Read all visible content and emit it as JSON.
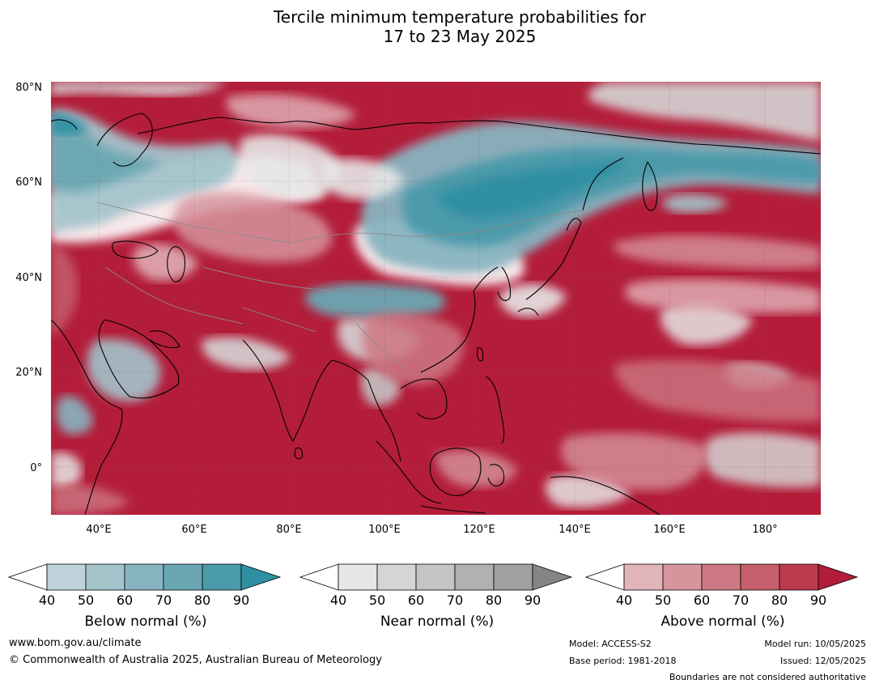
{
  "title_line1": "Tercile minimum temperature probabilities for",
  "title_line2": "17 to 23 May 2025",
  "map": {
    "lat_labels": [
      "80°N",
      "60°N",
      "40°N",
      "20°N",
      "0°"
    ],
    "lon_labels": [
      "40°E",
      "60°E",
      "80°E",
      "100°E",
      "120°E",
      "140°E",
      "160°E",
      "180°"
    ],
    "colors": {
      "below": [
        "#bfd3da",
        "#a4c4cc",
        "#88b4c0",
        "#6aa7b3",
        "#4a9aaa",
        "#2f8fa3"
      ],
      "near": [
        "#e6e6e6",
        "#d5d5d5",
        "#c4c4c4",
        "#b1b1b1",
        "#a0a0a0",
        "#858585"
      ],
      "above": [
        "#e2b5bb",
        "#d6959d",
        "#cd7883",
        "#c45f6b",
        "#bb3a4e",
        "#b31d3a"
      ],
      "land_white": "#ffffff"
    }
  },
  "colorbars": [
    {
      "label": "Below normal (%)",
      "ticks": [
        "40",
        "50",
        "60",
        "70",
        "80",
        "90"
      ],
      "colors": [
        "#bfd3da",
        "#a4c4cc",
        "#88b4c0",
        "#6aa7b3",
        "#4a9aaa",
        "#2f8fa3"
      ]
    },
    {
      "label": "Near normal (%)",
      "ticks": [
        "40",
        "50",
        "60",
        "70",
        "80",
        "90"
      ],
      "colors": [
        "#e6e6e6",
        "#d5d5d5",
        "#c4c4c4",
        "#b1b1b1",
        "#a0a0a0",
        "#858585"
      ]
    },
    {
      "label": "Above normal (%)",
      "ticks": [
        "40",
        "50",
        "60",
        "70",
        "80",
        "90"
      ],
      "colors": [
        "#e2b5bb",
        "#d6959d",
        "#cd7883",
        "#c45f6b",
        "#bb3a4e",
        "#b31d3a"
      ]
    }
  ],
  "footer": {
    "website": "www.bom.gov.au/climate",
    "copyright": "© Commonwealth of Australia 2025, Australian Bureau of Meteorology",
    "model": "Model: ACCESS-S2",
    "base_period": "Base period: 1981-2018",
    "model_run": "Model run: 10/05/2025",
    "issued": "Issued: 12/05/2025",
    "boundaries": "Boundaries are not considered authoritative"
  }
}
